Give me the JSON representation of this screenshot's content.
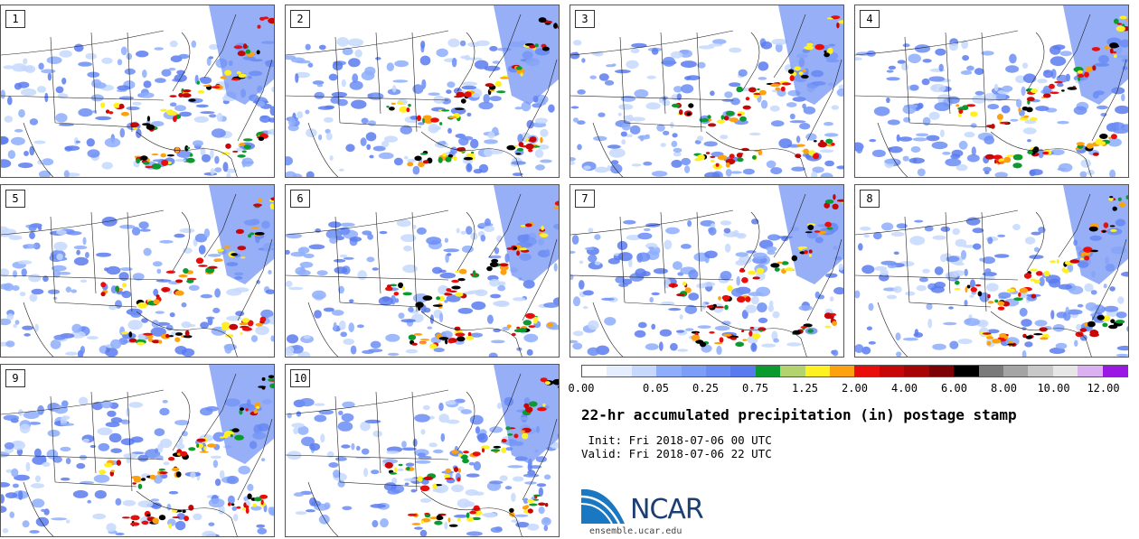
{
  "panels": [
    {
      "label": "1"
    },
    {
      "label": "2"
    },
    {
      "label": "3"
    },
    {
      "label": "4"
    },
    {
      "label": "5"
    },
    {
      "label": "6"
    },
    {
      "label": "7"
    },
    {
      "label": "8"
    },
    {
      "label": "9"
    },
    {
      "label": "10"
    }
  ],
  "colorbar": {
    "colors": [
      "#ffffff",
      "#e4eefe",
      "#c6d8fd",
      "#8eaefb",
      "#7d9ef8",
      "#6b8df4",
      "#5a7bef",
      "#0b9a2e",
      "#b3d36f",
      "#fff023",
      "#fca10f",
      "#e90e0b",
      "#c70607",
      "#a80406",
      "#7c0206",
      "#000000",
      "#7a7a7a",
      "#a4a4a4",
      "#c8c8c8",
      "#e6e6e6",
      "#dcb0f0",
      "#9b17e4"
    ],
    "ticks": [
      "0.00",
      "0.05",
      "0.25",
      "0.75",
      "1.25",
      "2.00",
      "4.00",
      "6.00",
      "8.00",
      "10.00",
      "12.00"
    ]
  },
  "title": "22-hr accumulated precipitation (in) postage stamp",
  "init": " Init: Fri 2018-07-06 00 UTC",
  "valid": "Valid: Fri 2018-07-06 22 UTC",
  "logo": {
    "text": "NCAR",
    "color": "#1b3f73",
    "swoosh_color": "#1a78c2"
  },
  "site": "ensemble.ucar.edu"
}
